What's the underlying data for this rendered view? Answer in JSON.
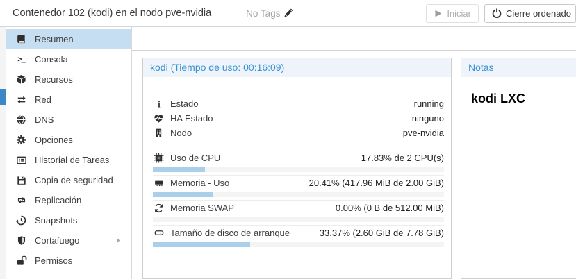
{
  "window": {
    "title": "Contenedor 102 (kodi) en el nodo pve-nvidia"
  },
  "toolbar": {
    "tags_label": "No Tags",
    "start_label": "Iniciar",
    "shutdown_label": "Cierre ordenado"
  },
  "sidebar": {
    "items": [
      {
        "label": "Resumen",
        "icon": "book-icon",
        "selected": true
      },
      {
        "label": "Consola",
        "icon": "terminal-icon"
      },
      {
        "label": "Recursos",
        "icon": "cube-icon"
      },
      {
        "label": "Red",
        "icon": "network-exchange-icon"
      },
      {
        "label": "DNS",
        "icon": "globe-icon"
      },
      {
        "label": "Opciones",
        "icon": "gear-icon"
      },
      {
        "label": "Historial de Tareas",
        "icon": "task-list-icon"
      },
      {
        "label": "Copia de seguridad",
        "icon": "floppy-icon"
      },
      {
        "label": "Replicación",
        "icon": "retweet-icon"
      },
      {
        "label": "Snapshots",
        "icon": "history-icon"
      },
      {
        "label": "Cortafuego",
        "icon": "shield-icon",
        "expandable": true
      },
      {
        "label": "Permisos",
        "icon": "unlock-icon"
      }
    ]
  },
  "status_panel": {
    "title": "kodi (Tiempo de uso: 00:16:09)",
    "rows": [
      {
        "icon": "info-icon",
        "label": "Estado",
        "value": "running"
      },
      {
        "icon": "heartbeat-icon",
        "label": "HA Estado",
        "value": "ninguno"
      },
      {
        "icon": "server-icon",
        "label": "Nodo",
        "value": "pve-nvidia"
      },
      {
        "icon": "cpu-icon",
        "label": "Uso de CPU",
        "value": "17.83% de 2 CPU(s)",
        "progress_percent": 17.83
      },
      {
        "icon": "memory-icon",
        "label": "Memoria - Uso",
        "value": "20.41% (417.96 MiB de 2.00 GiB)",
        "progress_percent": 20.41
      },
      {
        "icon": "swap-refresh-icon",
        "label": "Memoria SWAP",
        "value": "0.00% (0 B de 512.00 MiB)",
        "progress_percent": 0
      },
      {
        "icon": "disk-icon",
        "label": "Tamaño de disco de arranque",
        "value": "33.37% (2.60 GiB de 7.78 GiB)",
        "progress_percent": 33.37
      }
    ]
  },
  "notes_panel": {
    "title": "Notas",
    "content": "kodi LXC"
  },
  "colors": {
    "accent_blue": "#3892d4",
    "panel_header_bg": "#eef4f9",
    "progress_fill": "#a9cfe9",
    "sidebar_selected_bg": "#c5def1",
    "tree_selection_blue": "#3c87c6",
    "disabled_text": "#aeaeae"
  }
}
